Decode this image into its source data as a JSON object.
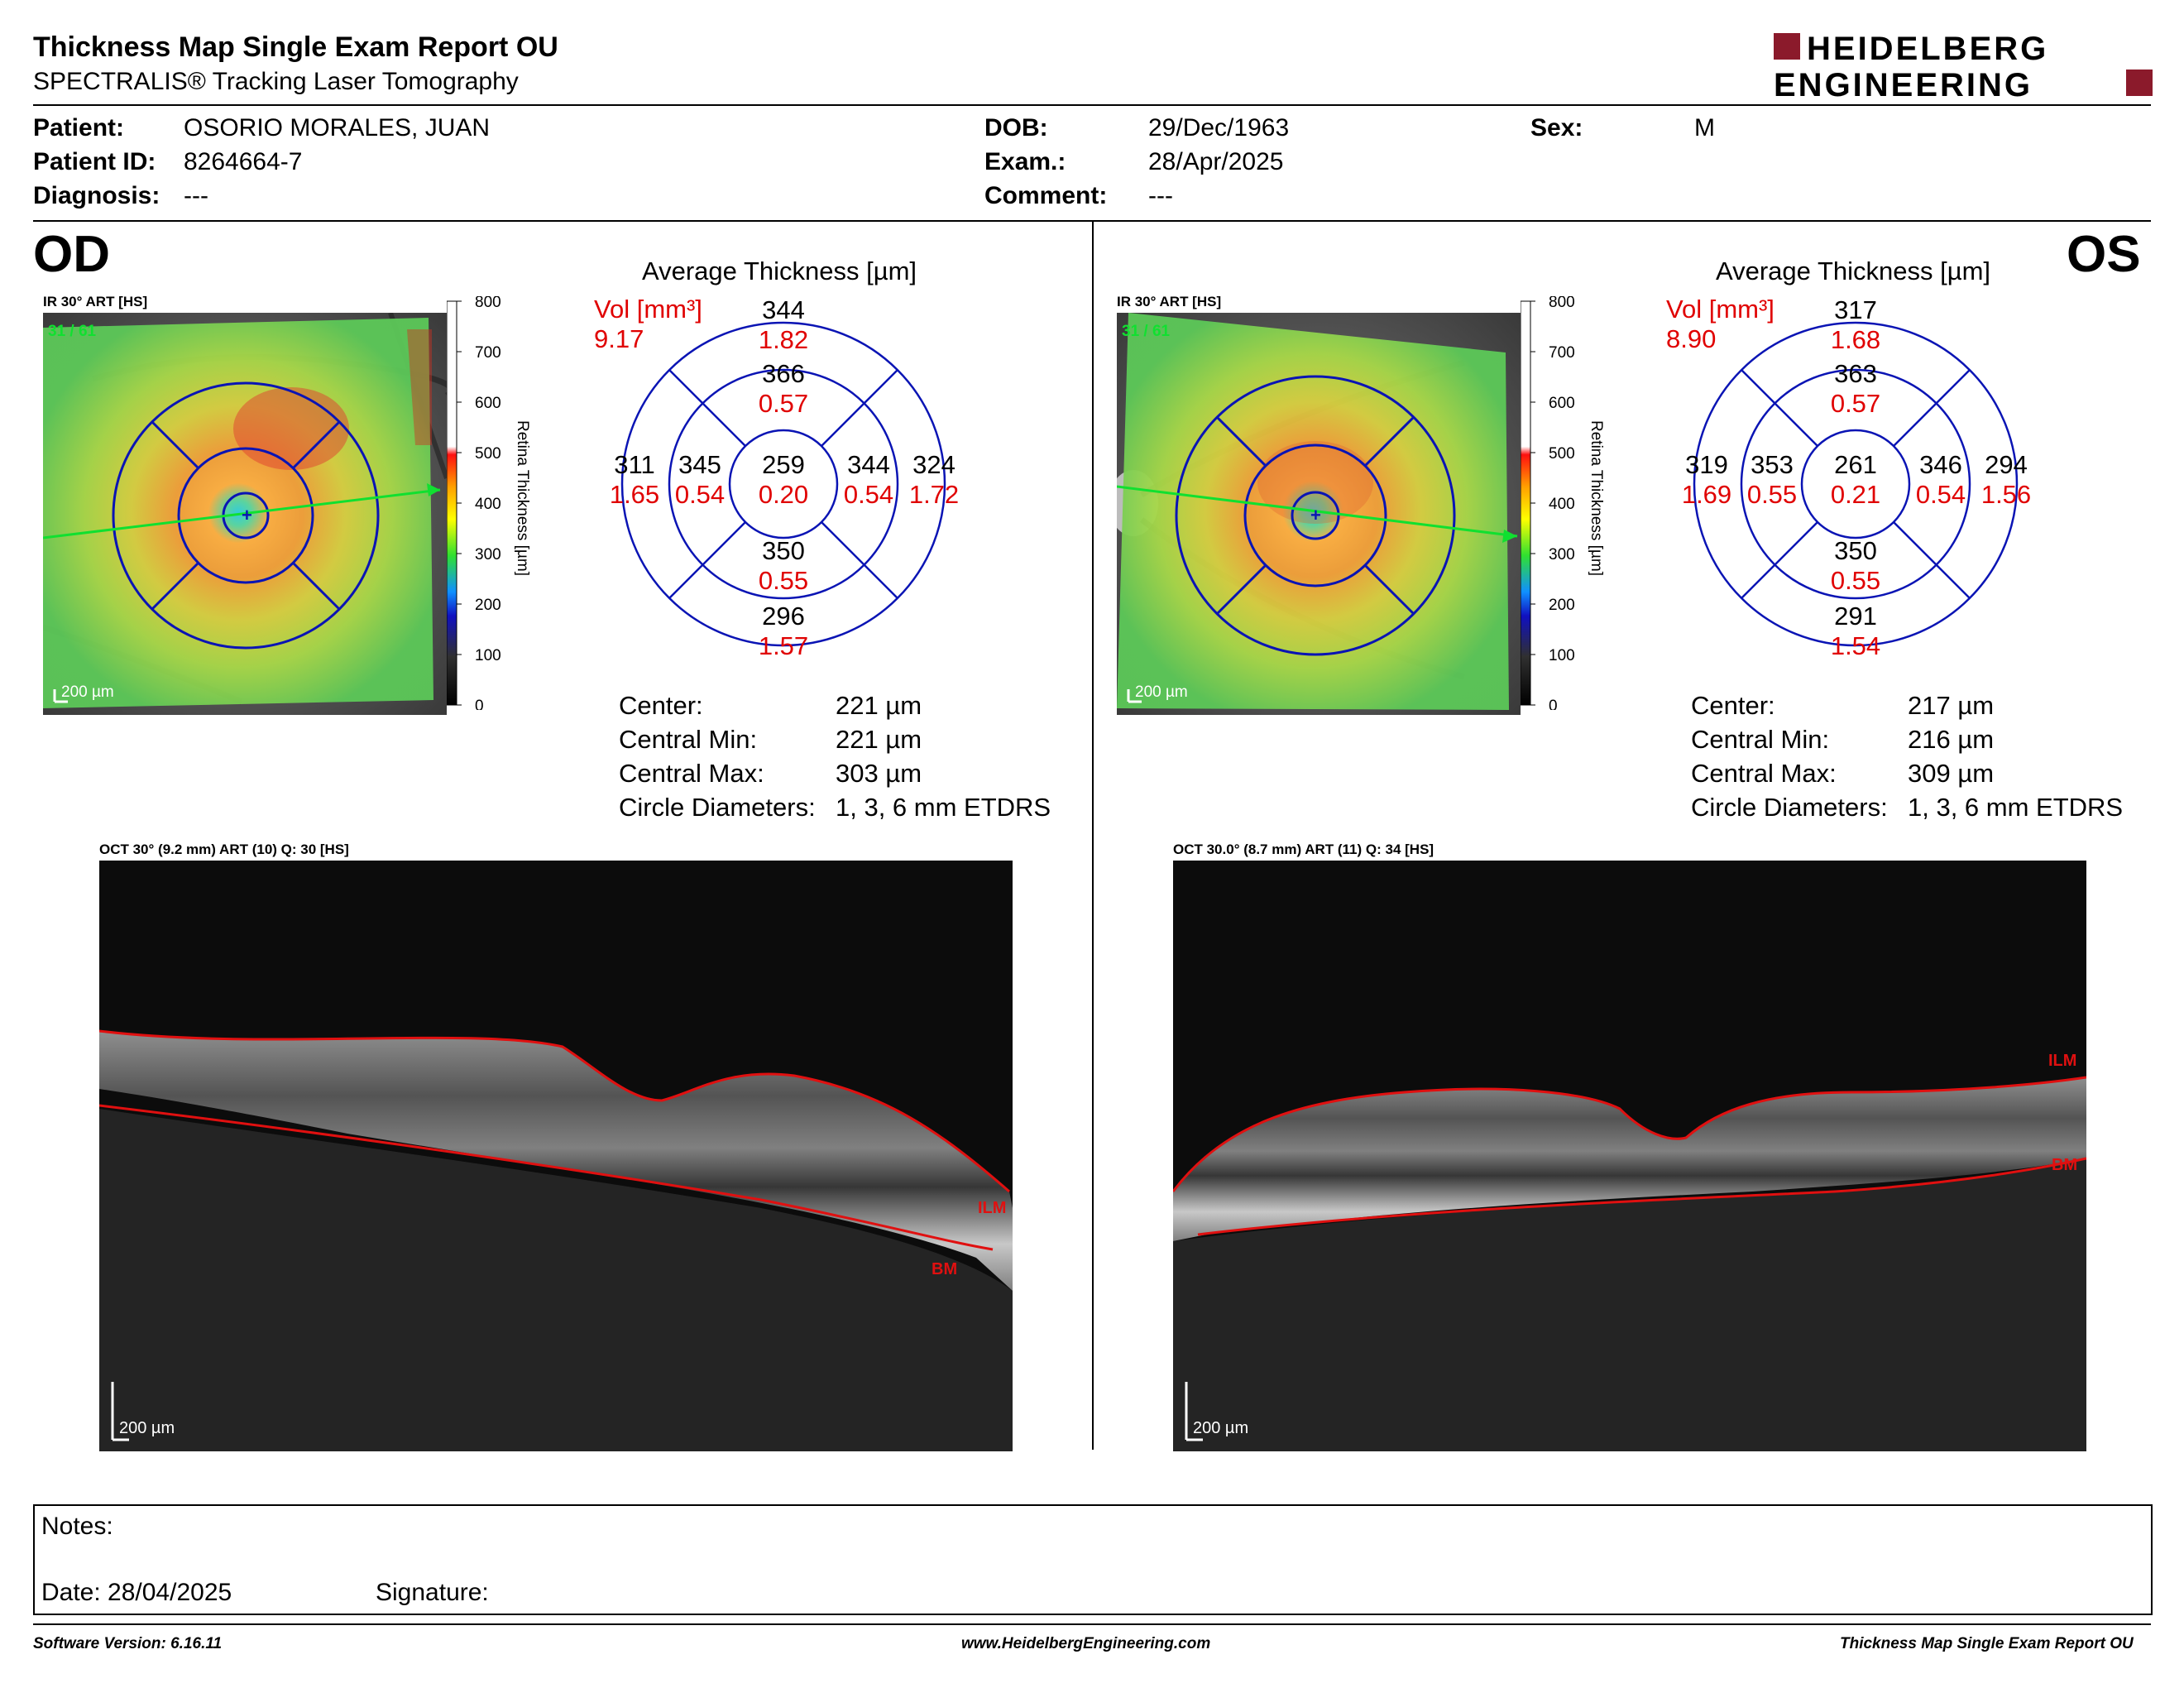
{
  "header": {
    "title": "Thickness Map Single Exam Report OU",
    "subtitle": "SPECTRALIS® Tracking Laser Tomography",
    "logo_line1": "HEIDELBERG",
    "logo_line2": "ENGINEERING"
  },
  "patient": {
    "patient_label": "Patient:",
    "patient_value": "OSORIO MORALES, JUAN",
    "id_label": "Patient ID:",
    "id_value": "8264664-7",
    "diagnosis_label": "Diagnosis:",
    "diagnosis_value": "---",
    "dob_label": "DOB:",
    "dob_value": "29/Dec/1963",
    "exam_label": "Exam.:",
    "exam_value": "28/Apr/2025",
    "comment_label": "Comment:",
    "comment_value": "---",
    "sex_label": "Sex:",
    "sex_value": "M"
  },
  "colorbar": {
    "ticks": [
      "800",
      "700",
      "600",
      "500",
      "400",
      "300",
      "200",
      "100",
      "0"
    ],
    "label": "Retina  Thickness [µm]"
  },
  "eyes": {
    "od": {
      "label": "OD",
      "ir_caption": "IR 30° ART [HS]",
      "ir_counter": "31 / 61",
      "ir_scale": "200 µm",
      "avg_title": "Average Thickness [µm]",
      "vol_label": "Vol [mm³]",
      "vol_value": "9.17",
      "sectors": {
        "outer_sup": {
          "t": "344",
          "v": "1.82"
        },
        "inner_sup": {
          "t": "366",
          "v": "0.57"
        },
        "outer_temp_left": {
          "t": "311",
          "v": "1.65"
        },
        "inner_left": {
          "t": "345",
          "v": "0.54"
        },
        "center": {
          "t": "259",
          "v": "0.20"
        },
        "inner_right": {
          "t": "344",
          "v": "0.54"
        },
        "outer_right": {
          "t": "324",
          "v": "1.72"
        },
        "inner_inf": {
          "t": "350",
          "v": "0.55"
        },
        "outer_inf": {
          "t": "296",
          "v": "1.57"
        }
      },
      "stats": [
        {
          "label": "Center:",
          "value": "221 µm"
        },
        {
          "label": "Central Min:",
          "value": "221 µm"
        },
        {
          "label": "Central Max:",
          "value": "303 µm"
        },
        {
          "label": "Circle Diameters:",
          "value": "1, 3, 6 mm ETDRS"
        }
      ],
      "oct_caption": "OCT 30° (9.2 mm) ART (10) Q: 30 [HS]",
      "oct_scale": "200 µm",
      "ilm": "ILM",
      "bm": "BM"
    },
    "os": {
      "label": "OS",
      "ir_caption": "IR 30° ART [HS]",
      "ir_counter": "31 / 61",
      "ir_scale": "200 µm",
      "avg_title": "Average Thickness [µm]",
      "vol_label": "Vol [mm³]",
      "vol_value": "8.90",
      "sectors": {
        "outer_sup": {
          "t": "317",
          "v": "1.68"
        },
        "inner_sup": {
          "t": "363",
          "v": "0.57"
        },
        "outer_temp_left": {
          "t": "319",
          "v": "1.69"
        },
        "inner_left": {
          "t": "353",
          "v": "0.55"
        },
        "center": {
          "t": "261",
          "v": "0.21"
        },
        "inner_right": {
          "t": "346",
          "v": "0.54"
        },
        "outer_right": {
          "t": "294",
          "v": "1.56"
        },
        "inner_inf": {
          "t": "350",
          "v": "0.55"
        },
        "outer_inf": {
          "t": "291",
          "v": "1.54"
        }
      },
      "stats": [
        {
          "label": "Center:",
          "value": "217 µm"
        },
        {
          "label": "Central Min:",
          "value": "216 µm"
        },
        {
          "label": "Central Max:",
          "value": "309 µm"
        },
        {
          "label": "Circle Diameters:",
          "value": "1, 3, 6 mm ETDRS"
        }
      ],
      "oct_caption": "OCT 30.0° (8.7 mm) ART (11) Q: 34 [HS]",
      "oct_scale": "200 µm",
      "ilm": "ILM",
      "bm": "BM"
    }
  },
  "notes": {
    "notes_label": "Notes:",
    "date_label": "Date: 28/04/2025",
    "signature_label": "Signature:"
  },
  "footer": {
    "left": "Software Version: 6.16.11",
    "center": "www.HeidelbergEngineering.com",
    "right": "Thickness Map Single Exam Report OU"
  },
  "colors": {
    "etdrs_blue": "#0a14b4",
    "value_red": "#e00000",
    "logo_maroon": "#8b1a2b"
  }
}
